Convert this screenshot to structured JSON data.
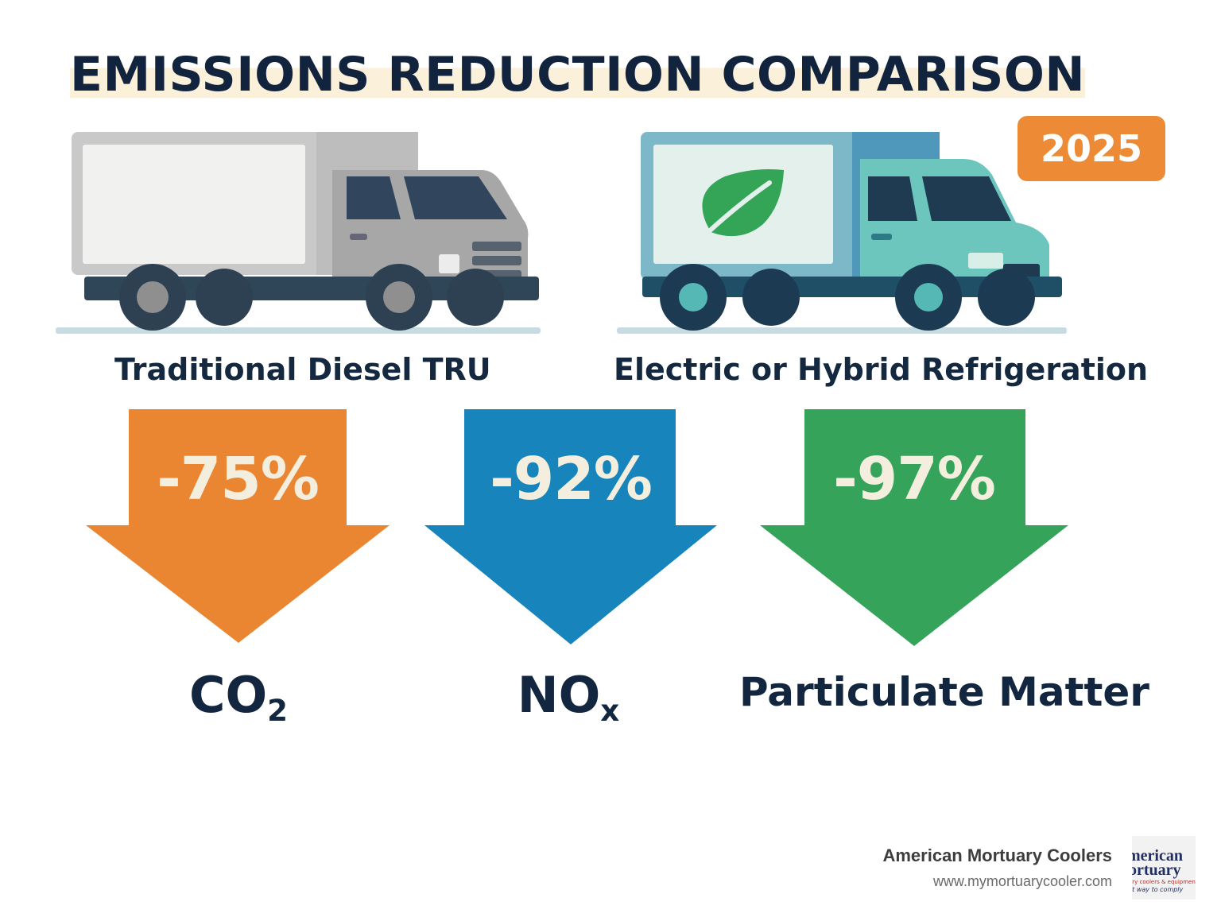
{
  "title": "EMISSIONS REDUCTION COMPARISON",
  "badge": {
    "year": "2025",
    "color": "#ec8a35"
  },
  "trucks": [
    {
      "label": "Traditional Diesel TRU",
      "icon": "diesel-truck-icon"
    },
    {
      "label": "Electric or Hybrid Refrigeration",
      "icon": "electric-truck-icon",
      "badge_icon": "leaf-icon"
    }
  ],
  "reductions": [
    {
      "value": "-75%",
      "pollutant_main": "CO",
      "pollutant_sub": "2",
      "color": "#ea8631"
    },
    {
      "value": "-92%",
      "pollutant_main": "NO",
      "pollutant_sub": "x",
      "color": "#1785bb"
    },
    {
      "value": "-97%",
      "pollutant_main": "Particulate Matter",
      "pollutant_sub": "",
      "color": "#35a35a"
    }
  ],
  "brand": {
    "name": "American Mortuary Coolers",
    "url": "www.mymortuarycooler.com",
    "logo_line1": "merican",
    "logo_line2": "ortuary",
    "logo_line3": "ary coolers & equipment",
    "logo_line4": "st way to comply"
  }
}
